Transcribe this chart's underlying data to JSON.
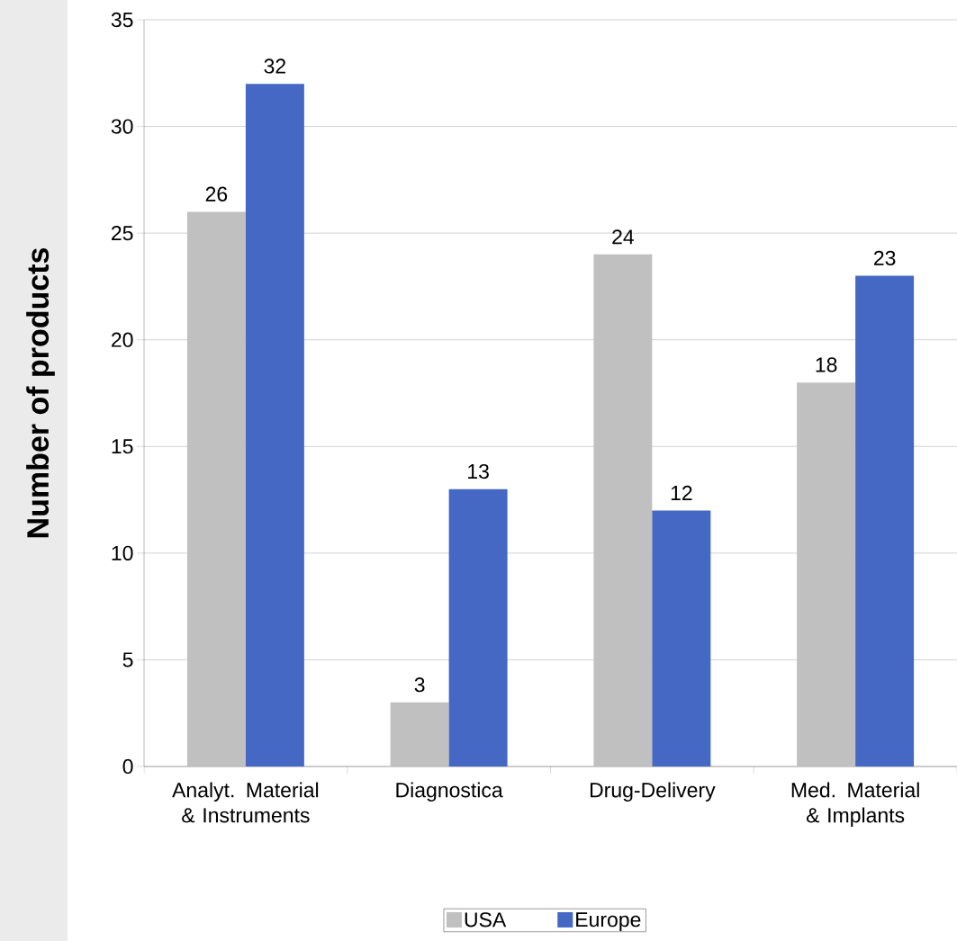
{
  "chart_data": {
    "type": "bar",
    "ylabel": "Number of products",
    "categories": [
      "Analyt. Material & Instruments",
      "Diagnostica",
      "Drug-Delivery",
      "Med. Material & Implants"
    ],
    "series": [
      {
        "name": "USA",
        "color": "#c0c0c0",
        "values": [
          26,
          3,
          24,
          18
        ]
      },
      {
        "name": "Europe",
        "color": "#4468c4",
        "values": [
          32,
          13,
          12,
          23
        ]
      }
    ],
    "ylim": [
      0,
      35
    ],
    "yticks": [
      0,
      5,
      10,
      15,
      20,
      25,
      30,
      35
    ],
    "grid": "y",
    "legend": "bottom",
    "data_labels": true
  }
}
